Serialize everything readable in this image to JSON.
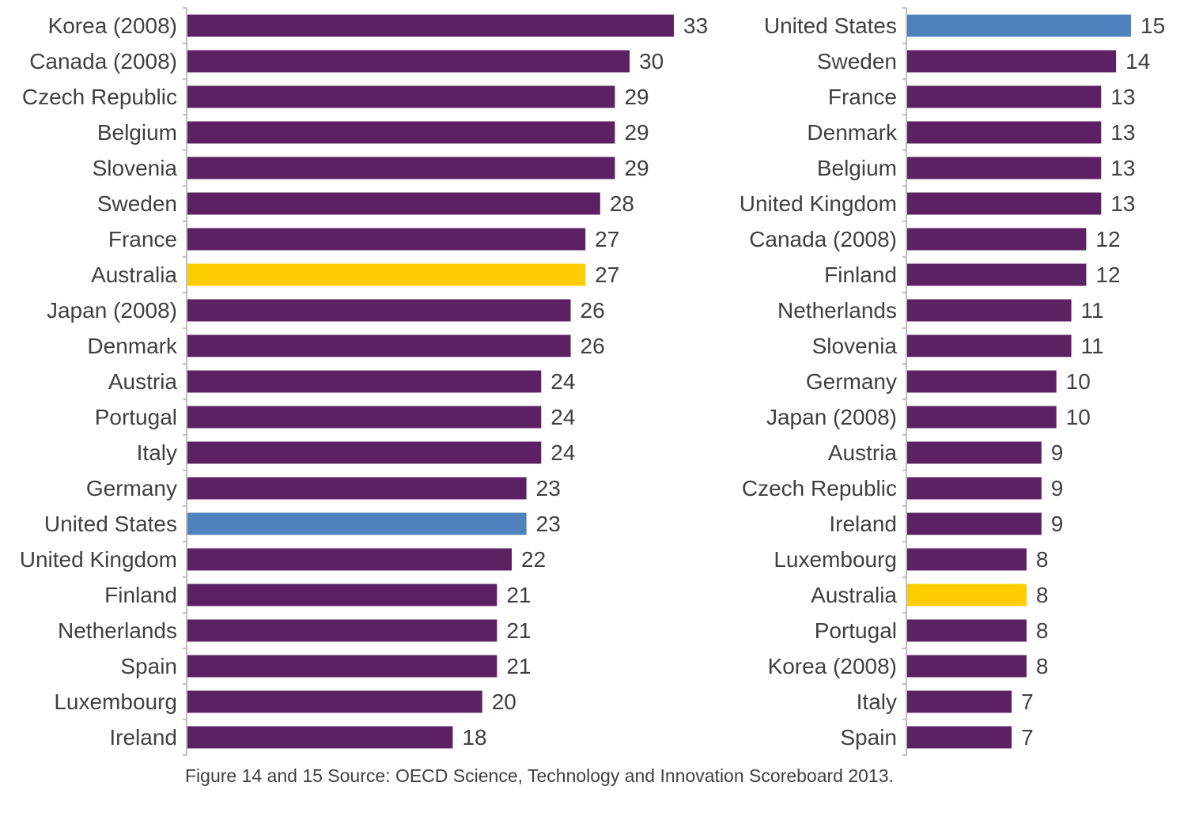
{
  "colors": {
    "default": "#5B2163",
    "australia": "#FFCC00",
    "united_states": "#4F81BD",
    "axis": "#BFBFBF",
    "text": "#404040"
  },
  "source_note": "Figure 14 and 15 Source: OECD Science, Technology and Innovation Scoreboard 2013.",
  "chart_data": [
    {
      "type": "bar",
      "orientation": "horizontal",
      "categories": [
        "Korea (2008)",
        "Canada (2008)",
        "Czech Republic",
        "Belgium",
        "Slovenia",
        "Sweden",
        "France",
        "Australia",
        "Japan (2008)",
        "Denmark",
        "Austria",
        "Portugal",
        "Italy",
        "Germany",
        "United States",
        "United Kingdom",
        "Finland",
        "Netherlands",
        "Spain",
        "Luxembourg",
        "Ireland"
      ],
      "values": [
        33,
        30,
        29,
        29,
        29,
        28,
        27,
        27,
        26,
        26,
        24,
        24,
        24,
        23,
        23,
        22,
        21,
        21,
        21,
        20,
        18
      ],
      "highlight": {
        "Australia": "#FFCC00",
        "United States": "#4F81BD"
      },
      "title": "",
      "xlabel": "",
      "ylabel": "",
      "xlim": [
        0,
        33
      ],
      "grid": false,
      "legend": "none"
    },
    {
      "type": "bar",
      "orientation": "horizontal",
      "categories": [
        "United States",
        "Sweden",
        "France",
        "Denmark",
        "Belgium",
        "United Kingdom",
        "Canada (2008)",
        "Finland",
        "Netherlands",
        "Slovenia",
        "Germany",
        "Japan (2008)",
        "Austria",
        "Czech Republic",
        "Ireland",
        "Luxembourg",
        "Australia",
        "Portugal",
        "Korea (2008)",
        "Italy",
        "Spain"
      ],
      "values": [
        15,
        14,
        13,
        13,
        13,
        13,
        12,
        12,
        11,
        11,
        10,
        10,
        9,
        9,
        9,
        8,
        8,
        8,
        8,
        7,
        7
      ],
      "highlight": {
        "Australia": "#FFCC00",
        "United States": "#4F81BD"
      },
      "title": "",
      "xlabel": "",
      "ylabel": "",
      "xlim": [
        0,
        15
      ],
      "grid": false,
      "legend": "none"
    }
  ]
}
